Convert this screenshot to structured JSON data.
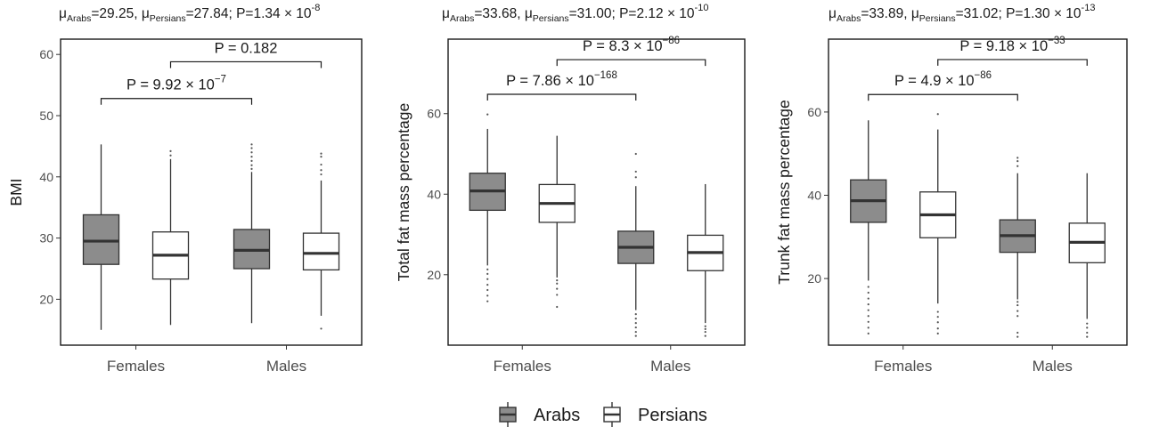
{
  "legend": {
    "items": [
      {
        "label": "Arabs",
        "fill": "#8c8c8c"
      },
      {
        "label": "Persians",
        "fill": "#ffffff"
      }
    ]
  },
  "chart_data": [
    {
      "type": "boxplot",
      "title_parts": {
        "mu": "μ",
        "g1": "Arabs",
        "v1": "=29.25, ",
        "g2": "Persians",
        "v2": "=27.84; P=1.34",
        "exp": "-8"
      },
      "ylabel": "BMI",
      "ylim": [
        12.5,
        62.5
      ],
      "yticks": [
        20,
        30,
        40,
        50,
        60
      ],
      "categories": [
        "Females",
        "Males"
      ],
      "series": [
        {
          "name": "Arabs",
          "color": "#8c8c8c",
          "boxes": [
            {
              "whisker_low": 15.0,
              "q1": 25.7,
              "median": 29.5,
              "q3": 33.8,
              "whisker_high": 45.3,
              "outliers": []
            },
            {
              "whisker_low": 16.1,
              "q1": 25.0,
              "median": 28.0,
              "q3": 31.4,
              "whisker_high": 40.8,
              "outliers": [
                41.3,
                41.9,
                42.6,
                43.3,
                44.0,
                44.7,
                45.3
              ]
            }
          ]
        },
        {
          "name": "Persians",
          "color": "#ffffff",
          "boxes": [
            {
              "whisker_low": 15.8,
              "q1": 23.3,
              "median": 27.2,
              "q3": 31.0,
              "whisker_high": 42.9,
              "outliers": [
                43.5,
                44.2
              ]
            },
            {
              "whisker_low": 17.3,
              "q1": 24.8,
              "median": 27.5,
              "q3": 30.8,
              "whisker_high": 39.4,
              "outliers": [
                15.2,
                40.4,
                41.1,
                42.0,
                43.3,
                43.8
              ]
            }
          ]
        }
      ],
      "comparisons": [
        {
          "between": [
            "Females",
            "Males"
          ],
          "group": "Arabs",
          "y": 52.8,
          "p_text": "P = 9.92 × 10",
          "p_exp": "−7"
        },
        {
          "between": [
            "Females",
            "Males"
          ],
          "group": "Persians",
          "y": 58.8,
          "p_text": "P = 0.182",
          "p_exp": ""
        }
      ]
    },
    {
      "type": "boxplot",
      "title_parts": {
        "mu": "μ",
        "g1": "Arabs",
        "v1": "=33.68, ",
        "g2": "Persians",
        "v2": "=31.00; P=2.12",
        "exp": "-10"
      },
      "ylabel": "Total fat mass percentage",
      "ylim": [
        2.5,
        78.5
      ],
      "yticks": [
        20,
        40,
        60
      ],
      "categories": [
        "Females",
        "Males"
      ],
      "series": [
        {
          "name": "Arabs",
          "color": "#8c8c8c",
          "boxes": [
            {
              "whisker_low": 22.3,
              "q1": 36.0,
              "median": 40.8,
              "q3": 45.2,
              "whisker_high": 56.2,
              "outliers": [
                13.4,
                14.8,
                16.2,
                17.5,
                18.9,
                20.2,
                21.3,
                59.8
              ]
            },
            {
              "whisker_low": 11.2,
              "q1": 22.8,
              "median": 26.8,
              "q3": 30.8,
              "whisker_high": 42.0,
              "outliers": [
                4.8,
                5.8,
                6.9,
                8.0,
                9.1,
                10.2,
                44.2,
                45.6,
                50.0
              ]
            }
          ]
        },
        {
          "name": "Persians",
          "color": "#ffffff",
          "boxes": [
            {
              "whisker_low": 19.3,
              "q1": 33.0,
              "median": 37.7,
              "q3": 42.4,
              "whisker_high": 54.5,
              "outliers": [
                12.0,
                15.0,
                16.5,
                17.8,
                18.6
              ]
            },
            {
              "whisker_low": 8.0,
              "q1": 21.0,
              "median": 25.5,
              "q3": 29.8,
              "whisker_high": 42.5,
              "outliers": [
                4.8,
                5.8,
                6.5,
                7.2
              ]
            }
          ]
        }
      ],
      "comparisons": [
        {
          "between": [
            "Females",
            "Males"
          ],
          "group": "Arabs",
          "y": 64.8,
          "p_text": "P = 7.86 × 10",
          "p_exp": "−168"
        },
        {
          "between": [
            "Females",
            "Males"
          ],
          "group": "Persians",
          "y": 73.4,
          "p_text": "P = 8.3 × 10",
          "p_exp": "−86"
        }
      ]
    },
    {
      "type": "boxplot",
      "title_parts": {
        "mu": "μ",
        "g1": "Arabs",
        "v1": "=33.89, ",
        "g2": "Persians",
        "v2": "=31.02; P=1.30",
        "exp": "-13"
      },
      "ylabel": "Trunk fat mass percentage",
      "ylim": [
        4.0,
        77.5
      ],
      "yticks": [
        20,
        40,
        60
      ],
      "categories": [
        "Females",
        "Males"
      ],
      "series": [
        {
          "name": "Arabs",
          "color": "#8c8c8c",
          "boxes": [
            {
              "whisker_low": 19.5,
              "q1": 33.5,
              "median": 38.7,
              "q3": 43.7,
              "whisker_high": 58.0,
              "outliers": [
                6.8,
                8.2,
                9.6,
                11.0,
                12.4,
                13.8,
                15.2,
                16.6,
                18.0
              ]
            },
            {
              "whisker_low": 15.0,
              "q1": 26.3,
              "median": 30.3,
              "q3": 34.1,
              "whisker_high": 45.3,
              "outliers": [
                6.0,
                7.0,
                11.0,
                12.2,
                13.6,
                14.4,
                47.0,
                48.2,
                49.0
              ]
            }
          ]
        },
        {
          "name": "Persians",
          "color": "#ffffff",
          "boxes": [
            {
              "whisker_low": 14.0,
              "q1": 29.8,
              "median": 35.3,
              "q3": 40.8,
              "whisker_high": 55.8,
              "outliers": [
                6.8,
                8.0,
                9.5,
                10.8,
                12.0,
                59.5
              ]
            },
            {
              "whisker_low": 10.3,
              "q1": 23.8,
              "median": 28.7,
              "q3": 33.3,
              "whisker_high": 45.3,
              "outliers": [
                6.0,
                7.0,
                8.2,
                9.2
              ]
            }
          ]
        }
      ],
      "comparisons": [
        {
          "between": [
            "Females",
            "Males"
          ],
          "group": "Arabs",
          "y": 64.2,
          "p_text": "P = 4.9 × 10",
          "p_exp": "−86"
        },
        {
          "between": [
            "Females",
            "Males"
          ],
          "group": "Persians",
          "y": 72.6,
          "p_text": "P = 9.18 × 10",
          "p_exp": "−33"
        }
      ]
    }
  ]
}
